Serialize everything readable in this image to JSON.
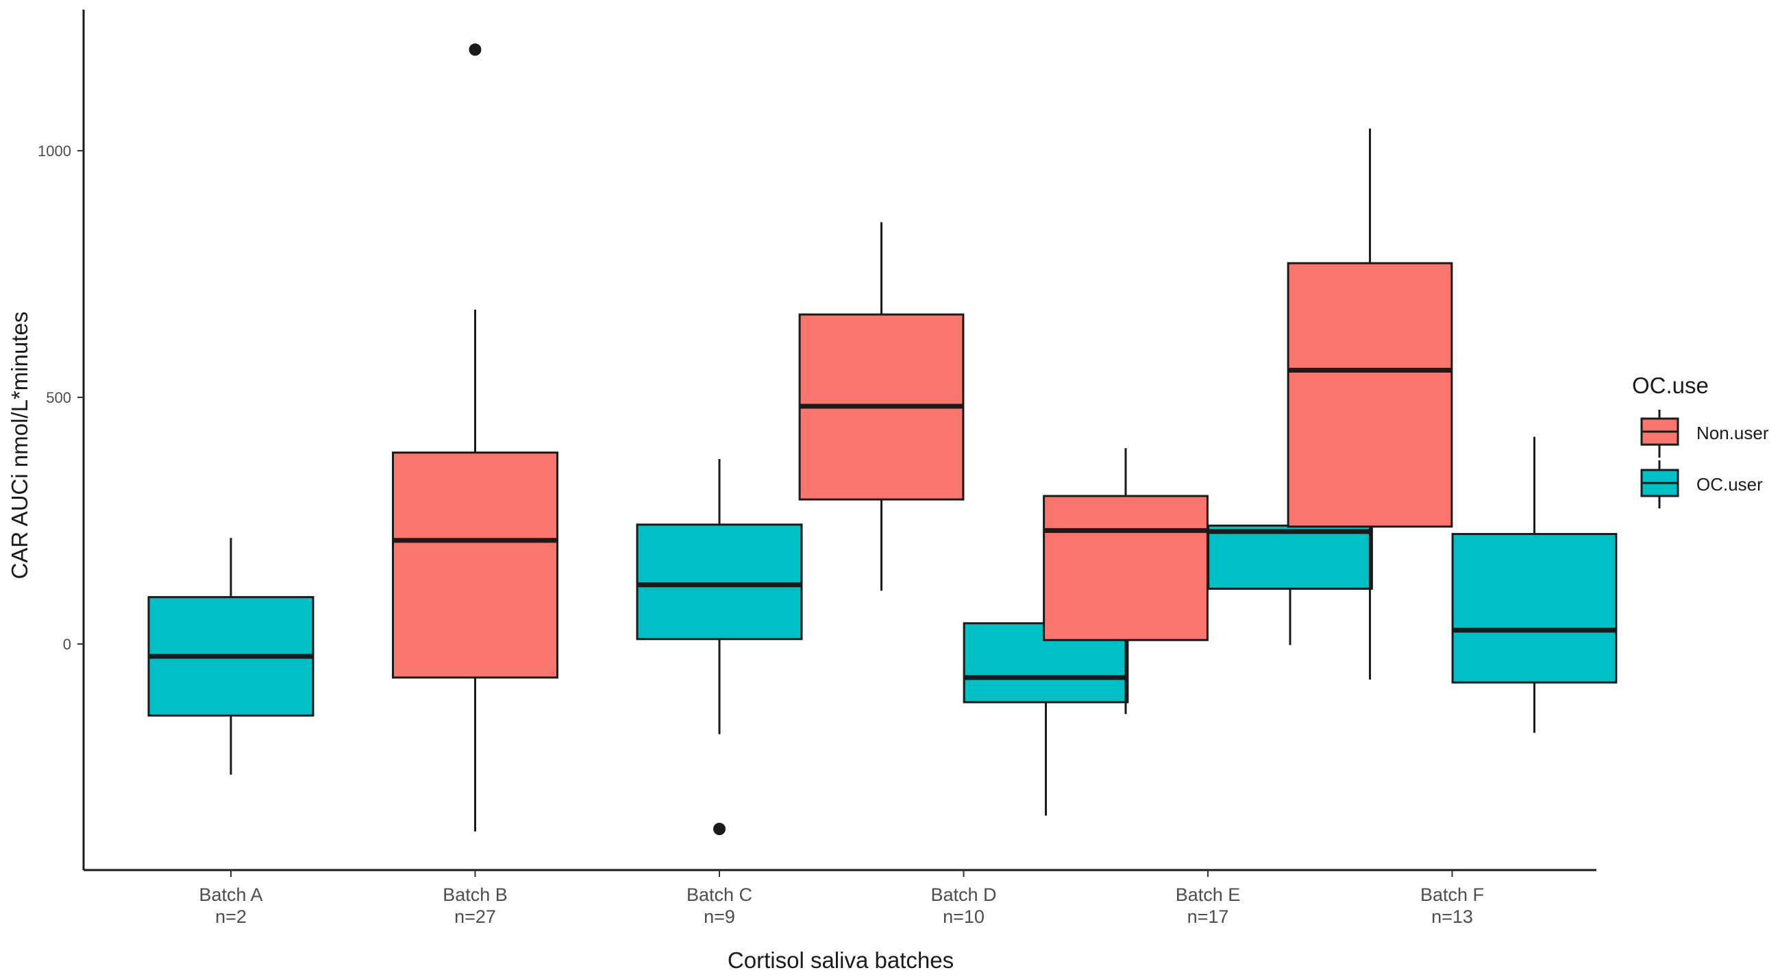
{
  "chart_data": {
    "type": "boxplot",
    "xlabel": "Cortisol saliva batches",
    "ylabel": "CAR AUCi nmol/L*minutes",
    "ylim": [
      -460,
      1290
    ],
    "yticks": [
      0,
      500,
      1000
    ],
    "legend": {
      "title": "OC.use",
      "position": "right",
      "entries": [
        {
          "name": "Non.user",
          "color": "#F8766D"
        },
        {
          "name": "OC.user",
          "color": "#00BFC4"
        }
      ]
    },
    "categories": [
      {
        "label": "Batch A",
        "n": "n=2"
      },
      {
        "label": "Batch B",
        "n": "n=27"
      },
      {
        "label": "Batch C",
        "n": "n=9"
      },
      {
        "label": "Batch D",
        "n": "n=10"
      },
      {
        "label": "Batch E",
        "n": "n=17"
      },
      {
        "label": "Batch F",
        "n": "n=13"
      }
    ],
    "boxes": [
      {
        "category": 0,
        "group": "OC.user",
        "slot": "single",
        "whisker_low": -265,
        "q1": -145,
        "median": -25,
        "q3": 95,
        "whisker_high": 215,
        "outliers": []
      },
      {
        "category": 1,
        "group": "Non.user",
        "slot": "single",
        "whisker_low": -380,
        "q1": -68,
        "median": 210,
        "q3": 388,
        "whisker_high": 678,
        "outliers": [
          1205
        ]
      },
      {
        "category": 2,
        "group": "OC.user",
        "slot": "single",
        "whisker_low": -183,
        "q1": 10,
        "median": 120,
        "q3": 242,
        "whisker_high": 375,
        "outliers": [
          -375
        ]
      },
      {
        "category": 3,
        "group": "Non.user",
        "slot": "left",
        "whisker_low": 108,
        "q1": 293,
        "median": 482,
        "q3": 668,
        "whisker_high": 855,
        "outliers": []
      },
      {
        "category": 3,
        "group": "OC.user",
        "slot": "right",
        "whisker_low": -348,
        "q1": -118,
        "median": -68,
        "q3": 42,
        "whisker_high": 108,
        "outliers": []
      },
      {
        "category": 4,
        "group": "Non.user",
        "slot": "left",
        "whisker_low": -142,
        "q1": 8,
        "median": 230,
        "q3": 300,
        "whisker_high": 397,
        "outliers": []
      },
      {
        "category": 4,
        "group": "OC.user",
        "slot": "right",
        "whisker_low": -2,
        "q1": 112,
        "median": 228,
        "q3": 240,
        "whisker_high": 250,
        "outliers": []
      },
      {
        "category": 5,
        "group": "Non.user",
        "slot": "left",
        "whisker_low": -72,
        "q1": 238,
        "median": 555,
        "q3": 772,
        "whisker_high": 1045,
        "outliers": []
      },
      {
        "category": 5,
        "group": "OC.user",
        "slot": "right",
        "whisker_low": -180,
        "q1": -78,
        "median": 28,
        "q3": 223,
        "whisker_high": 420,
        "outliers": []
      }
    ]
  }
}
